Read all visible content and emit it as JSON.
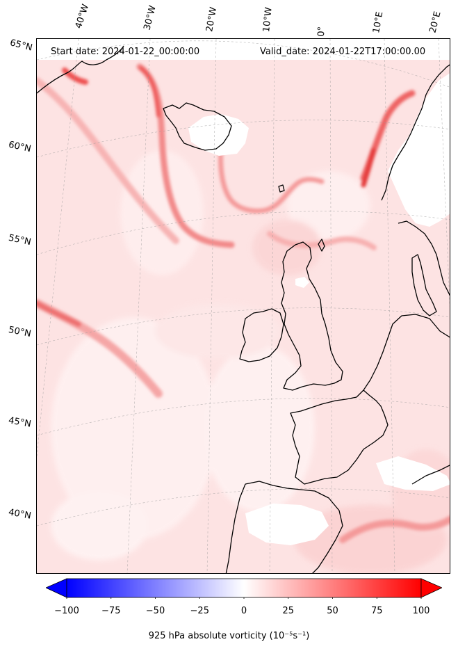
{
  "header": {
    "start_date": "Start date: 2024-01-22_00:00:00",
    "valid_date": "Valid_date: 2024-01-22T17:00:00.00"
  },
  "map": {
    "type": "filled-contour",
    "projection": "lambert-conformal",
    "lon_labels": [
      "40°W",
      "30°W",
      "20°W",
      "10°W",
      "0°",
      "10°E",
      "20°E"
    ],
    "lat_labels": [
      "65°N",
      "60°N",
      "55°N",
      "50°N",
      "45°N",
      "40°N"
    ],
    "gridlines": true,
    "coastlines": true,
    "colors": {
      "negative": "#0000ff",
      "zero": "#ffffff",
      "positive": "#ff0000"
    }
  },
  "colorbar": {
    "ticks": [
      "−100",
      "−75",
      "−50",
      "−25",
      "0",
      "25",
      "50",
      "75",
      "100"
    ],
    "range": [
      -100,
      100
    ],
    "extend": "both",
    "cmap": "bwr",
    "label": "925 hPa absolute vorticity (10⁻⁵s⁻¹)"
  }
}
